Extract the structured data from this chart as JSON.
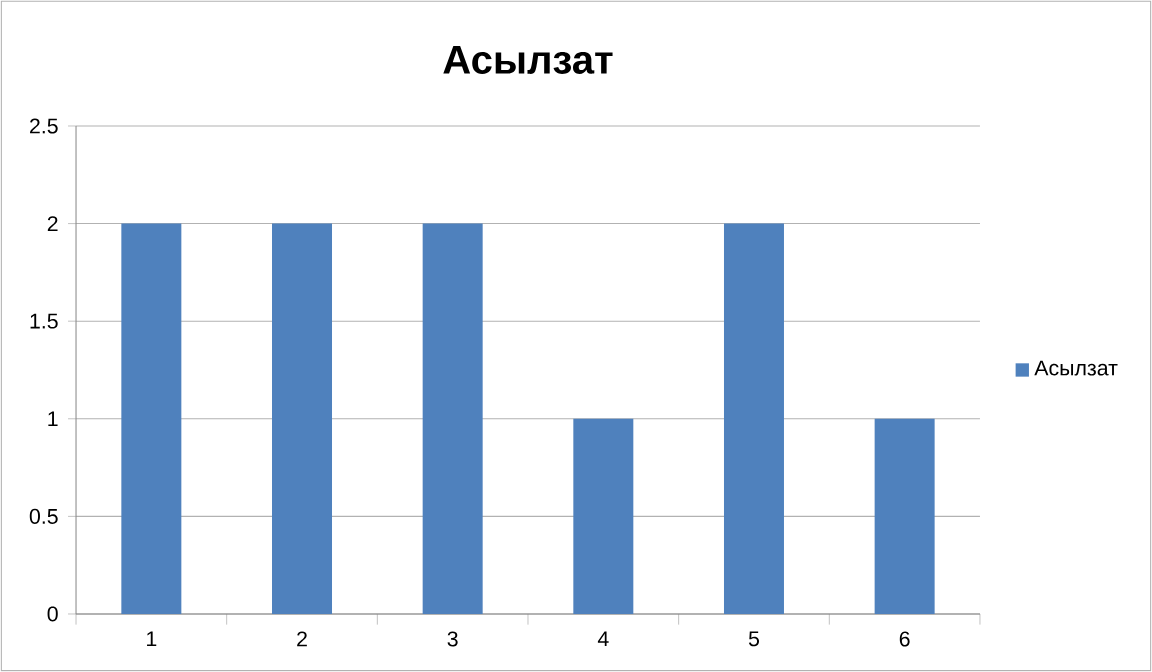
{
  "chart_data": {
    "type": "bar",
    "title": "Асылзат",
    "categories": [
      "1",
      "2",
      "3",
      "4",
      "5",
      "6"
    ],
    "series": [
      {
        "name": "Асылзат",
        "color": "#4f81bd",
        "values": [
          2,
          2,
          2,
          1,
          2,
          1
        ]
      }
    ],
    "ylim": [
      0,
      2.5
    ],
    "yticks": [
      0,
      0.5,
      1,
      1.5,
      2,
      2.5
    ],
    "grid": "y",
    "legend": "right"
  }
}
